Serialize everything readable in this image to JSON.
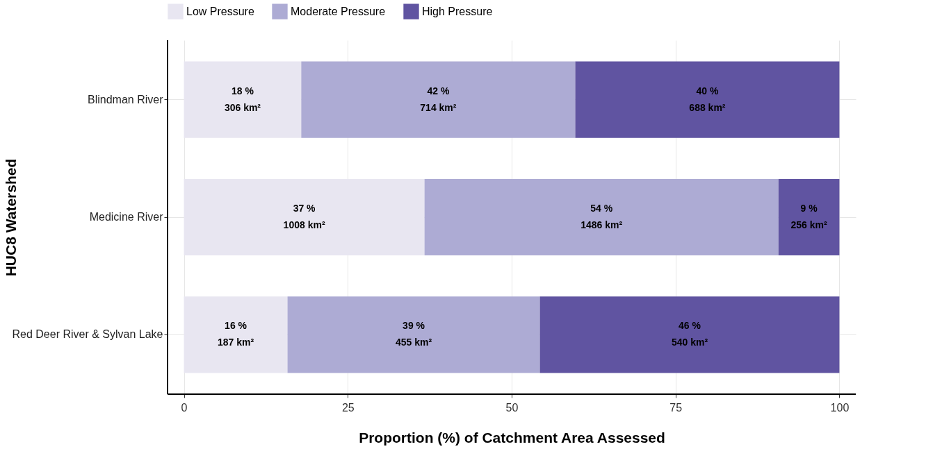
{
  "chart_data": {
    "type": "bar",
    "orientation": "horizontal",
    "stacked": true,
    "xlabel": "Proportion (%) of Catchment Area Assessed",
    "ylabel": "HUC8 Watershed",
    "categories": [
      "Blindman River",
      "Medicine River",
      "Red Deer River & Sylvan Lake"
    ],
    "series": [
      {
        "name": "Low Pressure",
        "color": "#e8e6f1",
        "values": [
          17.9,
          36.7,
          15.8
        ],
        "value_labels": [
          "18 %\n306 km²",
          "37 %\n1008 km²",
          "16 %\n187 km²"
        ]
      },
      {
        "name": "Moderate Pressure",
        "color": "#adabd4",
        "values": [
          41.8,
          54.0,
          38.5
        ],
        "value_labels": [
          "42 %\n714 km²",
          "54 %\n1486 km²",
          "39 %\n455 km²"
        ]
      },
      {
        "name": "High Pressure",
        "color": "#6054a1",
        "values": [
          40.3,
          9.3,
          45.7
        ],
        "value_labels": [
          "40 %\n688 km²",
          "9 %\n256 km²",
          "46 %\n540 km²"
        ]
      }
    ],
    "xlim": [
      -2.5,
      102.5
    ],
    "xticks": [
      0,
      25,
      50,
      75,
      100
    ],
    "grid": true,
    "legend": "top"
  }
}
